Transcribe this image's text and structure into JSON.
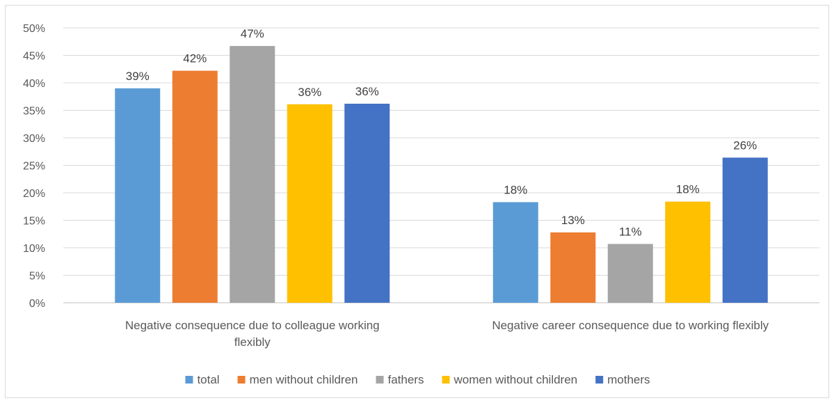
{
  "chart_data": {
    "type": "bar",
    "title": "",
    "xlabel": "",
    "ylabel": "",
    "categories": [
      [
        "Negative consequence due to colleague working",
        "flexibly"
      ],
      [
        "Negative career consequence due to working flexibly"
      ]
    ],
    "series": [
      {
        "name": "total",
        "color": "#5b9bd5",
        "values": [
          0.39,
          0.183
        ]
      },
      {
        "name": "men without children",
        "color": "#ed7d31",
        "values": [
          0.422,
          0.128
        ]
      },
      {
        "name": "fathers",
        "color": "#a5a5a5",
        "values": [
          0.467,
          0.107
        ]
      },
      {
        "name": "women without children",
        "color": "#ffc000",
        "values": [
          0.361,
          0.184
        ]
      },
      {
        "name": "mothers",
        "color": "#4472c4",
        "values": [
          0.362,
          0.264
        ]
      }
    ],
    "data_labels": [
      [
        "39%",
        "18%"
      ],
      [
        "42%",
        "13%"
      ],
      [
        "47%",
        "11%"
      ],
      [
        "36%",
        "18%"
      ],
      [
        "36%",
        "26%"
      ]
    ],
    "y_ticks": [
      "0%",
      "5%",
      "10%",
      "15%",
      "20%",
      "25%",
      "30%",
      "35%",
      "40%",
      "45%",
      "50%"
    ],
    "ylim": [
      0,
      0.5
    ],
    "grid": true,
    "legend_position": "bottom"
  }
}
